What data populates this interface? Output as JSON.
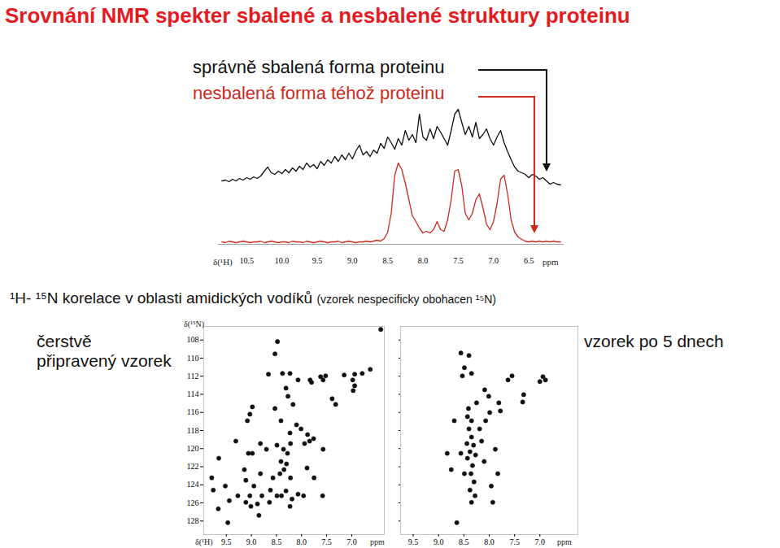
{
  "title": "Srovnání NMR spekter sbalené a nesbalené struktury proteinu",
  "caption": "¹H- ¹⁵N korelace v oblasti amidických vodíků",
  "caption_note": "(vzorek nespecificky obohacen ¹⁵N)",
  "chart_data": [
    {
      "type": "line",
      "x_label": "δ(¹H)",
      "x_unit": "ppm",
      "xlim": [
        10.9,
        6.0
      ],
      "xticks": [
        10.5,
        {
          "value": 10,
          "label": "10.0"
        },
        9.5,
        {
          "value": 9,
          "label": "9.0"
        },
        8.5,
        {
          "value": 8,
          "label": "8.0"
        },
        7.5,
        {
          "value": 7,
          "label": "7.0"
        },
        6.5
      ],
      "ylim": [
        0,
        170
      ],
      "tick_labels": "x",
      "x": [
        10.85,
        10.8,
        10.75,
        10.7,
        10.65,
        10.6,
        10.55,
        10.5,
        10.45,
        10.4,
        10.35,
        10.3,
        10.25,
        10.2,
        10.15,
        10.1,
        10.05,
        10,
        9.95,
        9.9,
        9.85,
        9.8,
        9.75,
        9.7,
        9.65,
        9.6,
        9.55,
        9.5,
        9.45,
        9.4,
        9.35,
        9.3,
        9.25,
        9.2,
        9.15,
        9.1,
        9.05,
        9,
        8.95,
        8.9,
        8.85,
        8.8,
        8.75,
        8.7,
        8.65,
        8.6,
        8.55,
        8.5,
        8.45,
        8.4,
        8.35,
        8.3,
        8.25,
        8.2,
        8.15,
        8.1,
        8.05,
        8,
        7.95,
        7.9,
        7.85,
        7.8,
        7.75,
        7.7,
        7.65,
        7.6,
        7.55,
        7.5,
        7.45,
        7.4,
        7.35,
        7.3,
        7.25,
        7.2,
        7.15,
        7.1,
        7.05,
        7,
        6.95,
        6.9,
        6.85,
        6.8,
        6.75,
        6.7,
        6.65,
        6.6,
        6.55,
        6.5,
        6.45,
        6.4,
        6.35,
        6.3,
        6.25,
        6.2,
        6.15,
        6.1,
        6.05
      ],
      "series": [
        {
          "name": "správně sbalená forma proteinu",
          "color": "#111111",
          "values": [
            78,
            79,
            77,
            80,
            78,
            81,
            79,
            82,
            80,
            83,
            81,
            84,
            90,
            95,
            88,
            86,
            90,
            87,
            92,
            88,
            94,
            90,
            96,
            92,
            100,
            95,
            98,
            93,
            102,
            97,
            104,
            100,
            108,
            102,
            110,
            104,
            112,
            105,
            115,
            122,
            110,
            114,
            108,
            116,
            112,
            124,
            118,
            132,
            125,
            117,
            130,
            122,
            140,
            128,
            135,
            125,
            160,
            132,
            128,
            142,
            130,
            145,
            138,
            130,
            122,
            140,
            160,
            166,
            150,
            135,
            145,
            132,
            150,
            130,
            135,
            142,
            130,
            122,
            132,
            140,
            125,
            114,
            104,
            95,
            90,
            88,
            86,
            82,
            86,
            84,
            80,
            82,
            78,
            74,
            76,
            74,
            73
          ]
        },
        {
          "name": "nesbalená forma téhož proteinu",
          "color": "#cc2a1e",
          "values": [
            3,
            2,
            4,
            3,
            2,
            3,
            4,
            3,
            2,
            3,
            3,
            4,
            2,
            3,
            4,
            3,
            2,
            3,
            3,
            2,
            4,
            3,
            3,
            2,
            4,
            3,
            2,
            3,
            4,
            3,
            2,
            3,
            3,
            4,
            2,
            3,
            4,
            3,
            2,
            3,
            3,
            4,
            3,
            4,
            5,
            4,
            7,
            15,
            38,
            85,
            100,
            92,
            75,
            55,
            35,
            28,
            20,
            14,
            16,
            14,
            18,
            28,
            18,
            16,
            30,
            55,
            90,
            92,
            72,
            38,
            30,
            38,
            55,
            62,
            45,
            25,
            18,
            28,
            50,
            80,
            85,
            62,
            30,
            15,
            9,
            6,
            4,
            3,
            4,
            3,
            4,
            3,
            4,
            3,
            4,
            3,
            3
          ]
        }
      ]
    },
    {
      "type": "scatter",
      "title": "čerstvě připravený vzorek",
      "x_label": "δ(¹H)",
      "x_unit": "ppm",
      "y_label": "δ(¹⁵N)",
      "color": "#111111",
      "marker": "circle",
      "xlim": [
        9.95,
        6.35
      ],
      "xticks": [
        9.5,
        {
          "value": 9,
          "label": "9.0"
        },
        8.5,
        {
          "value": 8,
          "label": "8.0"
        },
        7.5,
        {
          "value": 7,
          "label": "7.0"
        }
      ],
      "ylim": [
        106.5,
        129.5
      ],
      "yticks": [
        108,
        110,
        112,
        114,
        116,
        118,
        120,
        122,
        124,
        126,
        128
      ],
      "x": [
        6.42,
        8.48,
        8.53,
        8.66,
        8.38,
        8.23,
        7.83,
        7.8,
        7.62,
        7.57,
        7.52,
        7.15,
        6.94,
        6.79,
        6.63,
        6.98,
        6.94,
        6.97,
        8.31,
        8.27,
        7.39,
        7.32,
        8.98,
        9.03,
        9.08,
        8.53,
        8.41,
        8.1,
        8.23,
        8.01,
        7.88,
        7.84,
        7.76,
        7.94,
        9.31,
        8.82,
        8.7,
        8.49,
        8.36,
        8.28,
        8.22,
        9.06,
        8.41,
        8.3,
        8.35,
        8.43,
        8.22,
        8.57,
        8.98,
        9.65,
        9.14,
        8.82,
        9.79,
        9.76,
        9.52,
        9.27,
        9.03,
        8.79,
        8.4,
        8.19,
        8.07,
        7.96,
        8.31,
        8.62,
        7.58,
        7.75,
        7.89,
        8.88,
        8.85,
        9.01,
        9.66,
        9.47,
        9.11,
        7.57,
        8.17,
        8.07,
        9.11,
        9.44,
        8.64,
        8.49,
        8.23,
        8.95
      ],
      "values": [
        106.83,
        108.18,
        109.53,
        111.78,
        111.69,
        111.69,
        112.41,
        112.68,
        112.05,
        112.41,
        111.96,
        111.87,
        111.78,
        111.69,
        111.24,
        112.41,
        113.05,
        113.59,
        113.32,
        114.22,
        114.49,
        115.12,
        115.39,
        116.2,
        116.92,
        115.57,
        116.92,
        117.37,
        118.27,
        117.82,
        118.45,
        119.17,
        118.9,
        119.44,
        119.17,
        119.44,
        120.07,
        119.62,
        120.07,
        120.52,
        119.44,
        120.52,
        121.42,
        121.69,
        122.32,
        122.77,
        123.23,
        123.23,
        120.52,
        121.06,
        122.32,
        122.77,
        123.23,
        124.58,
        124.13,
        125.21,
        125.21,
        125.21,
        125.21,
        125.57,
        125.03,
        125.21,
        124.67,
        124.58,
        125.21,
        123.23,
        122.14,
        126.11,
        127.37,
        126.38,
        126.65,
        128.18,
        123.5,
        120.07,
        115.12,
        112.41,
        125.93,
        125.75,
        125.93,
        125.21,
        126.38,
        124.13
      ]
    },
    {
      "type": "scatter",
      "title": "vzorek po 5 dnech",
      "x_unit": "ppm",
      "color": "#111111",
      "marker": "circle",
      "tick_labels": "x",
      "xlim": [
        9.75,
        6.25
      ],
      "xticks": [
        9.5,
        {
          "value": 9,
          "label": "9.0"
        },
        8.5,
        {
          "value": 8,
          "label": "8.0"
        },
        7.5,
        {
          "value": 7,
          "label": "7.0"
        }
      ],
      "ylim": [
        106.5,
        129.5
      ],
      "yticks": [
        108,
        110,
        112,
        114,
        116,
        118,
        120,
        122,
        124,
        126,
        128
      ],
      "x": [
        8.56,
        8.4,
        8.49,
        8.53,
        8.35,
        7.55,
        7.63,
        6.94,
        6.89,
        7.0,
        7.32,
        7.34,
        8.09,
        8.01,
        7.78,
        8.41,
        8.43,
        8.35,
        8.4,
        8.35,
        8.44,
        8.31,
        8.38,
        8.27,
        8.43,
        8.33,
        8.36,
        8.3,
        8.38,
        8.28,
        8.35,
        8.49,
        8.56,
        8.15,
        8.07,
        7.99,
        7.96,
        7.93,
        8.19,
        8.1,
        8.83,
        8.75,
        7.83,
        7.88,
        8.69,
        8.25,
        8.64,
        7.81
      ],
      "values": [
        109.44,
        109.71,
        111.06,
        111.96,
        111.69,
        111.96,
        112.41,
        112.05,
        112.41,
        112.59,
        114.04,
        114.85,
        113.5,
        114.22,
        115.84,
        115.57,
        116.47,
        116.92,
        117.82,
        118.72,
        119.44,
        119.62,
        120.34,
        120.7,
        121.06,
        121.87,
        122.77,
        123.68,
        124.58,
        125.21,
        125.93,
        122.77,
        120.52,
        119.17,
        116.92,
        116.02,
        124.13,
        125.93,
        117.82,
        121.42,
        120.52,
        122.32,
        122.77,
        120.07,
        116.92,
        114.94,
        128.18,
        114.94
      ]
    }
  ]
}
